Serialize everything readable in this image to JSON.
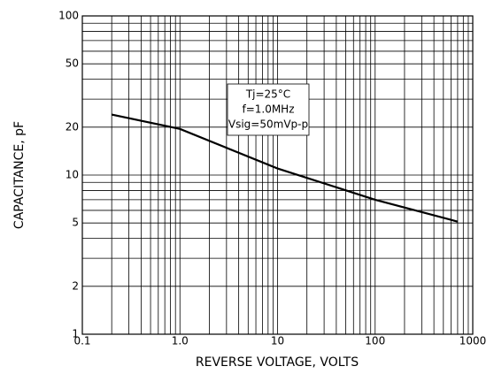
{
  "chart_data": {
    "type": "line",
    "xlabel": "REVERSE VOLTAGE, VOLTS",
    "ylabel": "CAPACITANCE, pF",
    "xscale": "log",
    "yscale": "log",
    "grid": true,
    "xlim": [
      0.1,
      1000
    ],
    "ylim": [
      1,
      100
    ],
    "xticks": [
      0.1,
      {
        "value": 1,
        "label": "1.0"
      },
      10,
      100,
      1000
    ],
    "yticks": [
      1,
      2,
      5,
      10,
      20,
      50,
      100
    ],
    "xgrid": [
      0.2,
      0.3,
      0.4,
      0.5,
      0.6,
      0.7,
      0.8,
      0.9,
      2,
      3,
      4,
      5,
      6,
      7,
      8,
      9,
      20,
      30,
      40,
      50,
      60,
      70,
      80,
      90,
      200,
      300,
      400,
      500,
      600,
      700,
      800,
      900
    ],
    "ygrid": [
      3,
      4,
      6,
      7,
      8,
      9,
      30,
      40,
      60,
      70,
      80,
      90
    ],
    "annotations": [
      "Tj=25°C",
      "f=1.0MHz",
      "Vsig=50mVp-p"
    ],
    "series": [
      {
        "color": "#000000",
        "x": [
          0.2,
          1,
          10,
          100,
          700
        ],
        "values": [
          24,
          19.5,
          11,
          7,
          5.1
        ]
      }
    ]
  }
}
